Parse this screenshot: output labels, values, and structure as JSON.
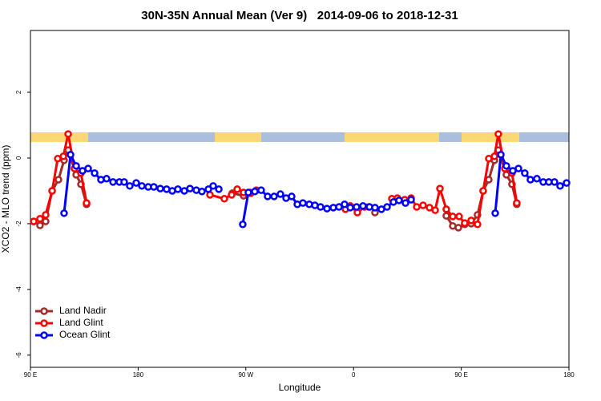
{
  "chart_data": {
    "type": "line",
    "title": "30N-35N Annual Mean (Ver 9)   2014-09-06 to 2018-12-31",
    "xlabel": "Longitude",
    "ylabel": "XCO2 - MLO trend (ppm)",
    "xlim": [
      90,
      540
    ],
    "xticks": [
      {
        "value": 90,
        "label": "90 E"
      },
      {
        "value": 180,
        "label": "180"
      },
      {
        "value": 270,
        "label": "90 W"
      },
      {
        "value": 360,
        "label": "0"
      },
      {
        "value": 450,
        "label": "90 E"
      },
      {
        "value": 540,
        "label": "180"
      }
    ],
    "ylim": [
      -6.37,
      3.88
    ],
    "yticks": [
      -6,
      -4,
      -2,
      0,
      2
    ],
    "legend": "bottom-left",
    "series": [
      {
        "name": "Land Nadir",
        "color": "#a52a2a",
        "x": [
          92.7,
          98.0,
          102.7,
          108.1,
          113.4,
          118.1,
          121.5,
          128.2,
          132.2,
          136.9,
          null,
          258.7,
          268.1,
          273.5,
          null,
          377.9,
          null,
          437.5,
          442.9,
          447.6,
          452.9,
          458.3,
          463.6,
          468.3,
          473.0,
          477.7,
          481.0,
          487.7,
          492.4,
          496.4
        ],
        "values": [
          -1.93,
          -2.05,
          -1.93,
          -1.0,
          -0.66,
          -0.07,
          0.24,
          -0.51,
          -0.8,
          -1.41,
          null,
          -1.07,
          -1.15,
          -1.05,
          null,
          -1.66,
          null,
          -1.76,
          -2.07,
          -2.12,
          -2.02,
          -2.0,
          -1.73,
          -1.0,
          -0.66,
          -0.07,
          0.24,
          -0.51,
          -0.8,
          -1.41
        ]
      },
      {
        "name": "Land Glint",
        "color": "#ff0000",
        "x": [
          92.7,
          98.0,
          102.7,
          108.1,
          112.8,
          117.5,
          121.5,
          126.8,
          132.2,
          136.9,
          null,
          240.0,
          252.0,
          258.1,
          262.8,
          268.1,
          274.1,
          278.8,
          null,
          353.2,
          357.2,
          363.2,
          369.2,
          372.6,
          null,
          392.0,
          396.7,
          402.7,
          408.1,
          412.8,
          418.1,
          423.5,
          428.2,
          432.2,
          437.5,
          442.9,
          448.2,
          452.9,
          458.3,
          463.6,
          468.3,
          473.0,
          477.7,
          481.0,
          486.4,
          492.4,
          496.4
        ],
        "values": [
          -1.93,
          -1.85,
          -1.73,
          -1.0,
          -0.02,
          0.05,
          0.73,
          -0.32,
          -0.46,
          -1.37,
          null,
          -1.12,
          -1.24,
          -1.12,
          -0.95,
          -1.05,
          -1.07,
          -0.98,
          null,
          -1.56,
          -1.46,
          -1.66,
          -1.49,
          -1.49,
          null,
          -1.24,
          -1.22,
          -1.27,
          -1.22,
          -1.49,
          -1.44,
          -1.51,
          -1.59,
          -0.93,
          -1.56,
          -1.78,
          -1.78,
          -1.98,
          -1.9,
          -2.02,
          -1.0,
          -0.02,
          0.05,
          0.73,
          -0.32,
          -0.46,
          -1.37
        ]
      },
      {
        "name": "Ocean Glint",
        "color": "#0000ff",
        "x": [
          118.1,
          123.5,
          128.2,
          133.5,
          138.2,
          143.6,
          148.9,
          153.6,
          159.0,
          164.3,
          168.3,
          173.0,
          178.4,
          183.1,
          188.4,
          193.1,
          198.5,
          203.8,
          208.5,
          213.2,
          218.6,
          223.3,
          228.6,
          233.3,
          238.7,
          242.7,
          247.4,
          null,
          267.4,
          272.1,
          277.5,
          282.8,
          288.2,
          293.6,
          298.9,
          303.6,
          308.3,
          313.0,
          317.7,
          323.0,
          327.7,
          332.4,
          337.8,
          343.1,
          347.8,
          352.5,
          357.2,
          362.5,
          367.9,
          373.3,
          377.9,
          383.3,
          388.0,
          393.3,
          398.0,
          403.4,
          408.1,
          null,
          478.4,
          483.1,
          487.7,
          493.1,
          497.8,
          503.1,
          507.8,
          513.2,
          518.5,
          523.2,
          527.9,
          532.6,
          538.0
        ],
        "values": [
          -1.68,
          0.1,
          -0.24,
          -0.39,
          -0.32,
          -0.46,
          -0.66,
          -0.63,
          -0.73,
          -0.73,
          -0.73,
          -0.85,
          -0.76,
          -0.85,
          -0.88,
          -0.88,
          -0.93,
          -0.95,
          -1.0,
          -0.95,
          -1.0,
          -0.93,
          -0.98,
          -1.02,
          -0.95,
          -0.85,
          -0.95,
          null,
          -2.02,
          -1.05,
          -1.02,
          -0.98,
          -1.17,
          -1.17,
          -1.1,
          -1.22,
          -1.17,
          -1.41,
          -1.37,
          -1.41,
          -1.44,
          -1.49,
          -1.54,
          -1.51,
          -1.49,
          -1.41,
          -1.51,
          -1.49,
          -1.46,
          -1.49,
          -1.51,
          -1.56,
          -1.49,
          -1.34,
          -1.29,
          -1.37,
          -1.27,
          null,
          -1.68,
          0.1,
          -0.24,
          -0.39,
          -0.32,
          -0.46,
          -0.66,
          -0.63,
          -0.73,
          -0.73,
          -0.73,
          -0.85,
          -0.76
        ]
      }
    ]
  }
}
